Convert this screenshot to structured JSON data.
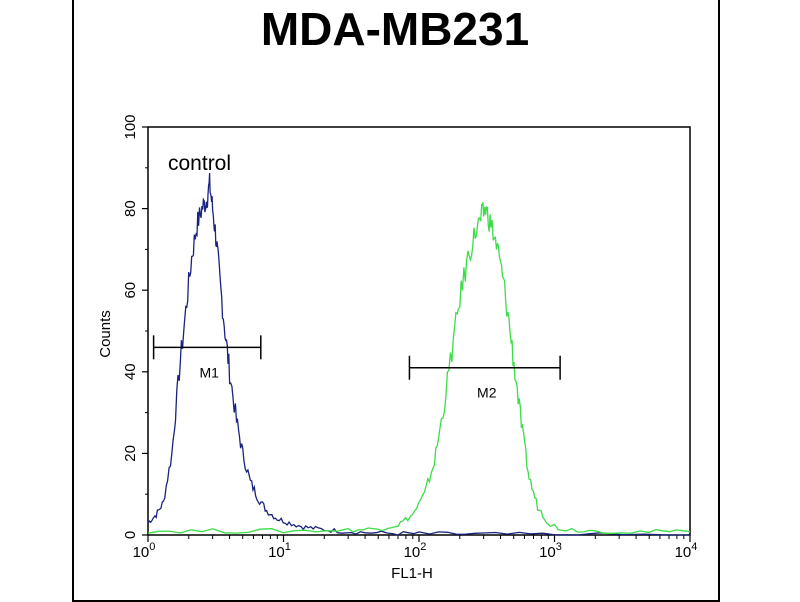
{
  "chart_data": {
    "type": "line",
    "title": "MDA-MB231",
    "xlabel": "FL1-H",
    "ylabel": "Counts",
    "xscale": "log",
    "xlim": [
      1,
      10000
    ],
    "ylim": [
      0,
      100
    ],
    "x_ticks": [
      {
        "base": "10",
        "exp": "0",
        "value": 1
      },
      {
        "base": "10",
        "exp": "1",
        "value": 10
      },
      {
        "base": "10",
        "exp": "2",
        "value": 100
      },
      {
        "base": "10",
        "exp": "3",
        "value": 1000
      },
      {
        "base": "10",
        "exp": "4",
        "value": 10000
      }
    ],
    "y_ticks": [
      "0",
      "20",
      "40",
      "60",
      "80",
      "100"
    ],
    "annotation": "control",
    "series": [
      {
        "color": "#1a237e",
        "points": [
          [
            1.0,
            3
          ],
          [
            1.15,
            5
          ],
          [
            1.3,
            8
          ],
          [
            1.5,
            20
          ],
          [
            1.7,
            40
          ],
          [
            1.9,
            55
          ],
          [
            2.1,
            68
          ],
          [
            2.3,
            76
          ],
          [
            2.5,
            80
          ],
          [
            2.7,
            82
          ],
          [
            2.85,
            86
          ],
          [
            3.0,
            80
          ],
          [
            3.2,
            72
          ],
          [
            3.4,
            62
          ],
          [
            3.7,
            50
          ],
          [
            4.0,
            40
          ],
          [
            4.5,
            28
          ],
          [
            5.0,
            20
          ],
          [
            5.7,
            13
          ],
          [
            6.5,
            9
          ],
          [
            7.5,
            6
          ],
          [
            9,
            4
          ],
          [
            11,
            3
          ],
          [
            14,
            2
          ],
          [
            18,
            1.5
          ],
          [
            25,
            1
          ],
          [
            40,
            0.6
          ],
          [
            70,
            0.4
          ],
          [
            120,
            0.3
          ],
          [
            300,
            0.2
          ],
          [
            1000,
            0.1
          ],
          [
            10000,
            0
          ]
        ]
      },
      {
        "color": "#3ddc4a",
        "points": [
          [
            1,
            1
          ],
          [
            3,
            1
          ],
          [
            10,
            1
          ],
          [
            30,
            1.2
          ],
          [
            50,
            1.5
          ],
          [
            70,
            2.5
          ],
          [
            90,
            5
          ],
          [
            110,
            10
          ],
          [
            130,
            18
          ],
          [
            150,
            30
          ],
          [
            175,
            45
          ],
          [
            200,
            58
          ],
          [
            230,
            68
          ],
          [
            260,
            74
          ],
          [
            290,
            78
          ],
          [
            310,
            80
          ],
          [
            340,
            76
          ],
          [
            380,
            70
          ],
          [
            420,
            62
          ],
          [
            470,
            50
          ],
          [
            520,
            38
          ],
          [
            580,
            25
          ],
          [
            650,
            14
          ],
          [
            750,
            7
          ],
          [
            900,
            3
          ],
          [
            1100,
            1.5
          ],
          [
            2000,
            1
          ],
          [
            5000,
            0.8
          ],
          [
            10000,
            0.8
          ]
        ]
      }
    ],
    "markers": [
      {
        "label": "M1",
        "x_start": 1.1,
        "x_end": 6.8,
        "y": 46
      },
      {
        "label": "M2",
        "x_start": 85,
        "x_end": 1100,
        "y": 41
      }
    ]
  }
}
